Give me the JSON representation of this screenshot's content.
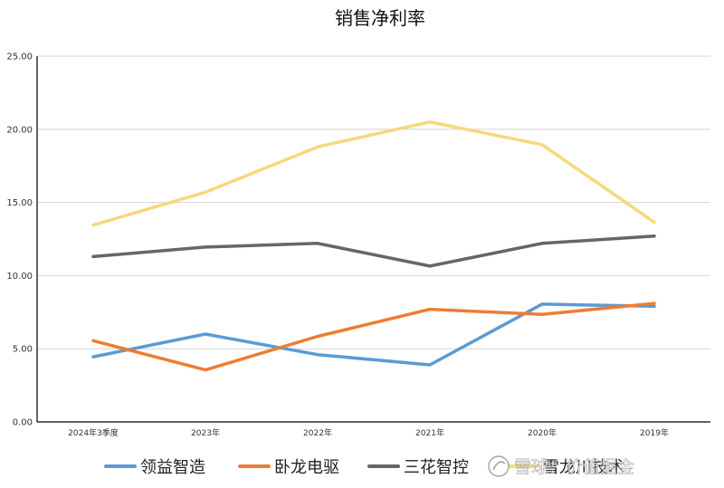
{
  "chart_data": {
    "type": "line",
    "title": "销售净利率",
    "categories": [
      "2024年3季度",
      "2023年",
      "2022年",
      "2021年",
      "2020年",
      "2019年"
    ],
    "ylim": [
      0,
      25
    ],
    "yticks": [
      "0.00",
      "5.00",
      "10.00",
      "15.00",
      "20.00",
      "25.00"
    ],
    "grid": true,
    "legend_position": "bottom",
    "series": [
      {
        "name": "领益智造",
        "color": "#5b9bd5",
        "values": [
          4.45,
          6.0,
          4.6,
          3.9,
          8.05,
          7.9
        ]
      },
      {
        "name": "卧龙电驱",
        "color": "#ed7d31",
        "values": [
          5.55,
          3.55,
          5.85,
          7.7,
          7.35,
          8.1
        ]
      },
      {
        "name": "三花智控",
        "color": "#666666",
        "values": [
          11.3,
          11.95,
          12.2,
          10.65,
          12.2,
          12.7
        ]
      },
      {
        "name": "雪龙川技术",
        "color": "#f5d97a",
        "values": [
          13.45,
          15.7,
          18.8,
          20.5,
          18.95,
          13.65
        ]
      }
    ]
  },
  "watermark": {
    "text": "雪球：价值掘金",
    "icon": "snowball-logo-icon"
  }
}
